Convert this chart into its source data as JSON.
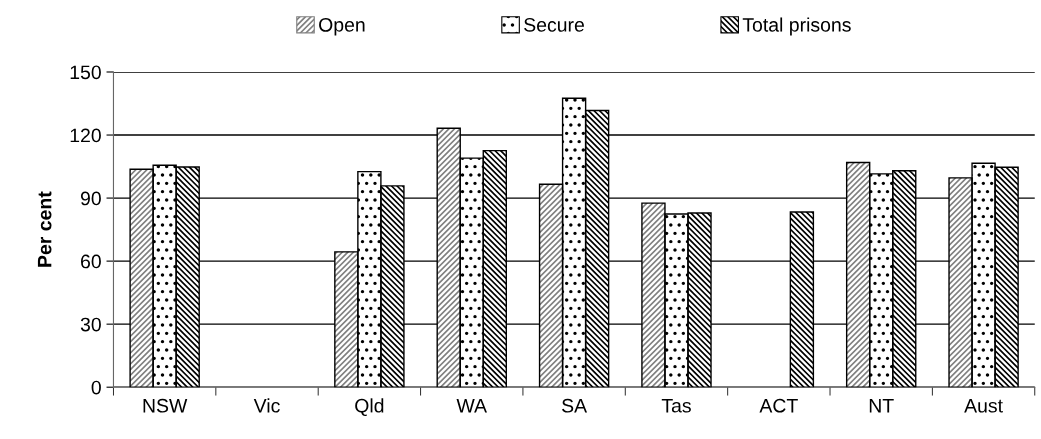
{
  "chart_data": {
    "type": "bar",
    "ylabel": "Per cent",
    "categories": [
      "NSW",
      "Vic",
      "Qld",
      "WA",
      "SA",
      "Tas",
      "ACT",
      "NT",
      "Aust"
    ],
    "series": [
      {
        "name": "Open",
        "color": "#808080",
        "values": [
          103.7,
          null,
          64.4,
          123.2,
          96.6,
          87.6,
          null,
          106.9,
          99.6
        ]
      },
      {
        "name": "Secure",
        "color": "#000000",
        "values": [
          105.6,
          null,
          102.6,
          109.0,
          137.5,
          82.4,
          null,
          101.5,
          106.6
        ]
      },
      {
        "name": "Total prisons",
        "color": "#000000",
        "values": [
          104.8,
          null,
          95.8,
          112.6,
          131.7,
          82.9,
          83.4,
          103.0,
          104.7
        ]
      }
    ],
    "ylim": [
      0,
      150
    ],
    "yticks": [
      0,
      30,
      60,
      90,
      120,
      150
    ],
    "grid": "y",
    "legend": "top"
  }
}
